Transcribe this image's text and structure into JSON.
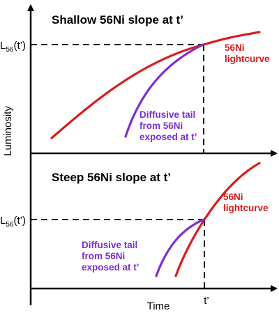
{
  "panels": {
    "top": {
      "title": "Shallow 56Ni slope at t’",
      "ni_label_lines": [
        "56Ni",
        "lightcurve"
      ],
      "tail_label_lines": [
        "Diffusive tail",
        "from 56Ni",
        "exposed at t’"
      ]
    },
    "bottom": {
      "title": "Steep 56Ni slope at t’",
      "ni_label_lines": [
        "56Ni",
        "lightcurve"
      ],
      "tail_label_lines": [
        "Diffusive tail",
        "from 56Ni",
        "exposed at t’"
      ]
    }
  },
  "axes": {
    "y_label": "Luminosity",
    "x_label": "Time",
    "l56_prefix": "L",
    "l56_sub": "56",
    "l56_suffix": "(t’)",
    "t_prime_label": "t’"
  },
  "colors": {
    "ni_curve": "#dd1b1b",
    "tail_curve": "#7b2fd6",
    "axis": "#000000"
  }
}
